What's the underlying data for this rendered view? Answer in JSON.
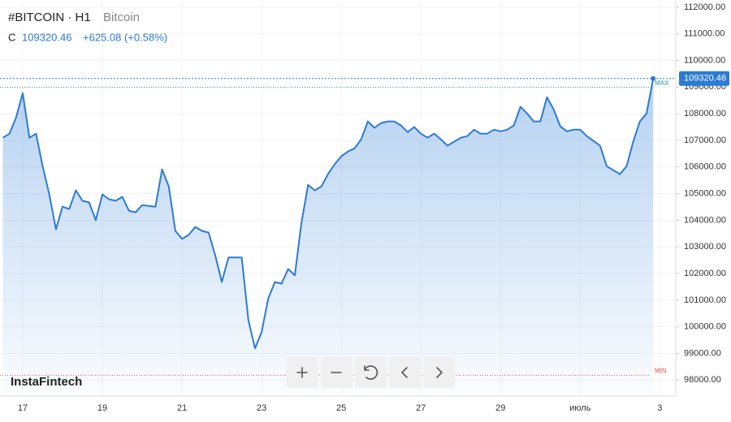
{
  "header": {
    "symbol": "#BITCOIN · H1",
    "name": "Bitcoin",
    "close_label": "C",
    "change": "+625.08 (+0.58%)"
  },
  "logo": "InstaFintech",
  "chart_data": {
    "type": "area",
    "color": "#2b7bd6",
    "grid": true,
    "categories": [
      null,
      null,
      null,
      "17",
      null,
      null,
      null,
      null,
      null,
      null,
      null,
      null,
      null,
      null,
      null,
      "19",
      null,
      null,
      null,
      null,
      null,
      null,
      null,
      null,
      null,
      null,
      null,
      "21",
      null,
      null,
      null,
      null,
      null,
      null,
      null,
      null,
      null,
      null,
      null,
      "23",
      null,
      null,
      null,
      null,
      null,
      null,
      null,
      null,
      null,
      null,
      null,
      "25",
      null,
      null,
      null,
      null,
      null,
      null,
      null,
      null,
      null,
      null,
      null,
      "27",
      null,
      null,
      null,
      null,
      null,
      null,
      null,
      null,
      null,
      null,
      null,
      "29",
      null,
      null,
      null,
      null,
      null,
      null,
      null,
      null,
      null,
      null,
      null,
      "июль",
      null,
      null,
      null,
      null,
      null,
      null,
      null,
      null,
      null,
      null,
      null,
      "3"
    ],
    "values": [
      107100,
      107250,
      107860,
      108770,
      107100,
      107250,
      106030,
      104970,
      103660,
      104510,
      104420,
      105120,
      104730,
      104670,
      104000,
      104970,
      104790,
      104730,
      104880,
      104360,
      104300,
      104570,
      104540,
      104510,
      105910,
      105270,
      103600,
      103300,
      103450,
      103750,
      103600,
      103540,
      102690,
      101680,
      102600,
      102600,
      102600,
      100250,
      99190,
      99800,
      101070,
      101680,
      101620,
      102170,
      101930,
      103900,
      105330,
      105120,
      105270,
      105730,
      106100,
      106400,
      106580,
      106700,
      107040,
      107710,
      107470,
      107650,
      107710,
      107710,
      107560,
      107310,
      107500,
      107250,
      107100,
      107250,
      107040,
      106800,
      106950,
      107100,
      107160,
      107400,
      107250,
      107250,
      107400,
      107340,
      107400,
      107560,
      108260,
      108010,
      107710,
      107710,
      108620,
      108170,
      107530,
      107340,
      107400,
      107400,
      107160,
      106980,
      106800,
      106030,
      105880,
      105730,
      106030,
      106950,
      107710,
      108010,
      109320.46,
      null
    ],
    "ylim": [
      97400,
      112270
    ],
    "yticks": [
      {
        "value": 98000,
        "label": "98000.00"
      },
      {
        "value": 99000,
        "label": "99000.00"
      },
      {
        "value": 100000,
        "label": "100000.00"
      },
      {
        "value": 101000,
        "label": "101000.00"
      },
      {
        "value": 102000,
        "label": "102000.00"
      },
      {
        "value": 103000,
        "label": "103000.00"
      },
      {
        "value": 104000,
        "label": "104000.00"
      },
      {
        "value": 105000,
        "label": "105000.00"
      },
      {
        "value": 106000,
        "label": "106000.00"
      },
      {
        "value": 107000,
        "label": "107000.00"
      },
      {
        "value": 108000,
        "label": "108000.00"
      },
      {
        "value": 109000,
        "label": "109000.00"
      },
      {
        "value": 110000,
        "label": "110000.00"
      },
      {
        "value": 111000,
        "label": "111000.00"
      },
      {
        "value": 112000,
        "label": "112000.00"
      }
    ],
    "hlines": [
      {
        "label": "MAX",
        "value": 108990,
        "color": "#26a69a"
      },
      {
        "label": "MIN",
        "value": 98180,
        "color": "#ef5350"
      }
    ]
  }
}
